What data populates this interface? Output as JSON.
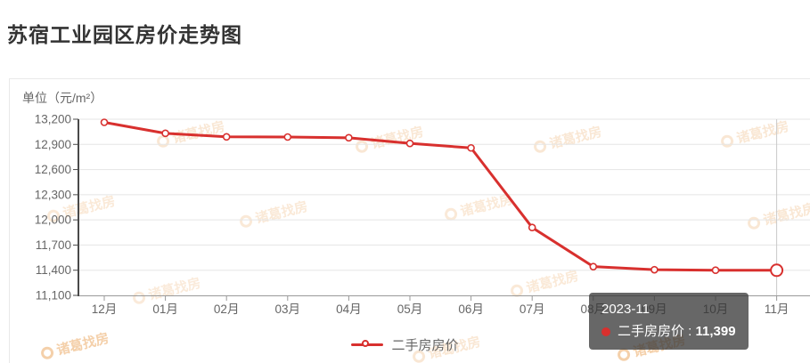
{
  "header": {
    "title": "苏宿工业园区房价走势图"
  },
  "chart_data": {
    "type": "line",
    "title": "苏宿工业园区房价走势图",
    "unit_label": "单位（元/m²）",
    "categories": [
      "12月",
      "01月",
      "02月",
      "03月",
      "04月",
      "05月",
      "06月",
      "07月",
      "08月",
      "09月",
      "10月",
      "11月"
    ],
    "series": [
      {
        "name": "二手房房价",
        "values": [
          13163,
          13032,
          12990,
          12988,
          12979,
          12912,
          12858,
          11909,
          11443,
          11406,
          11400,
          11399
        ]
      }
    ],
    "ylim": [
      11100,
      13200
    ],
    "ytick_interval": 300,
    "grid": true,
    "legend_position": "bottom",
    "hovered_index": 11,
    "hovered_point_label": "2023-11"
  },
  "tooltip": {
    "date": "2023-11",
    "series_label": "二手房房价",
    "separator": " : ",
    "value": "11,399"
  },
  "legend": {
    "label": "二手房房价"
  },
  "watermark": {
    "text": "诸葛找房"
  },
  "colors": {
    "line": "#d8302e",
    "point_fill": "#ffffff",
    "grid": "#e5e5e5",
    "y_axis": "#4a4a4a",
    "x_axis": "#999999",
    "axis_text": "#666666",
    "crosshair": "#c9c9c9",
    "title_text": "#333333",
    "tooltip_bg": "rgba(52,52,52,0.75)",
    "watermark": "#eeb173"
  }
}
